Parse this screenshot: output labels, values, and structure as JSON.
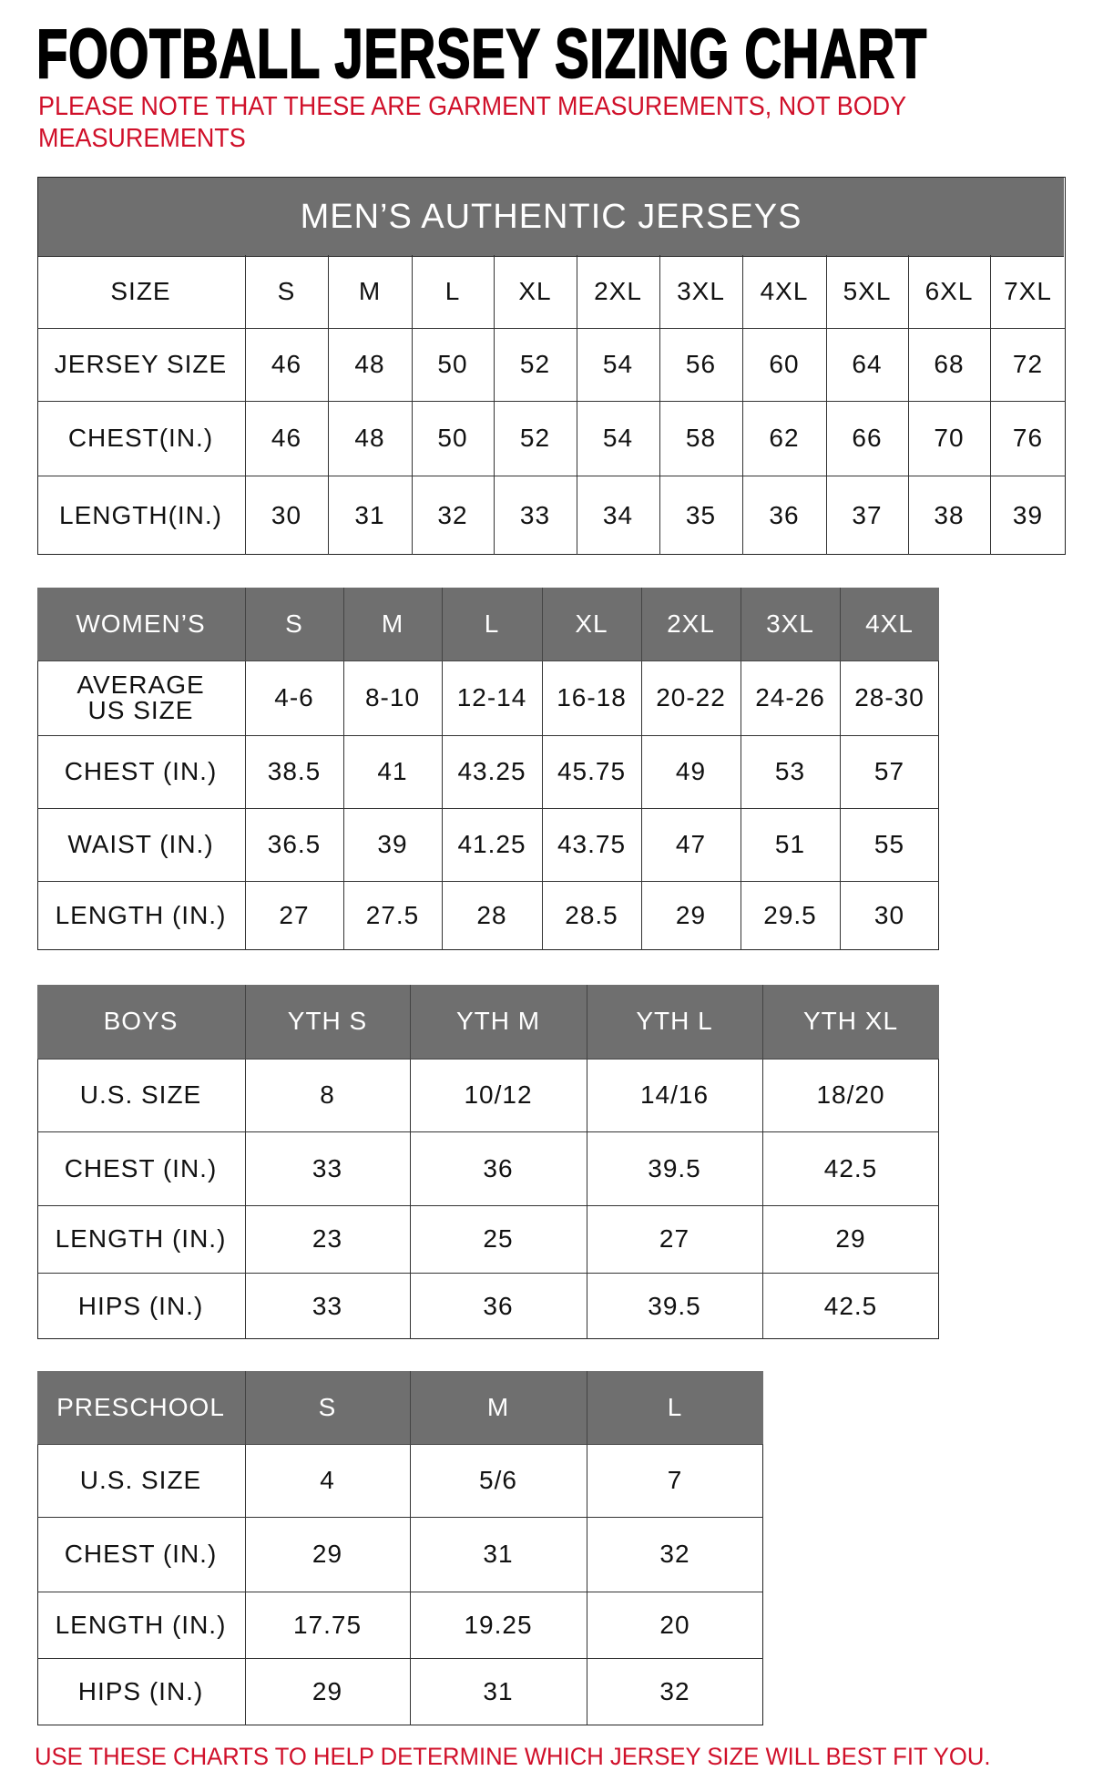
{
  "title": "FOOTBALL JERSEY SIZING CHART",
  "note": "PLEASE NOTE THAT THESE ARE GARMENT MEASUREMENTS, NOT BODY MEASUREMENTS",
  "footer": "USE THESE CHARTS TO HELP DETERMINE WHICH JERSEY SIZE WILL BEST FIT YOU.",
  "colors": {
    "header_gray": "#6f6f6f",
    "accent_red": "#d0102a"
  },
  "tables": [
    {
      "id": "mens",
      "caption": "MEN’S AUTHENTIC JERSEYS",
      "header_gray": false,
      "rows": [
        [
          "SIZE",
          "S",
          "M",
          "L",
          "XL",
          "2XL",
          "3XL",
          "4XL",
          "5XL",
          "6XL",
          "7XL"
        ],
        [
          "JERSEY SIZE",
          "46",
          "48",
          "50",
          "52",
          "54",
          "56",
          "60",
          "64",
          "68",
          "72"
        ],
        [
          "CHEST(IN.)",
          "46",
          "48",
          "50",
          "52",
          "54",
          "58",
          "62",
          "66",
          "70",
          "76"
        ],
        [
          "LENGTH(IN.)",
          "30",
          "31",
          "32",
          "33",
          "34",
          "35",
          "36",
          "37",
          "38",
          "39"
        ]
      ]
    },
    {
      "id": "womens",
      "header_gray": true,
      "rows": [
        [
          "WOMEN’S",
          "S",
          "M",
          "L",
          "XL",
          "2XL",
          "3XL",
          "4XL"
        ],
        [
          "AVERAGE US SIZE",
          "4-6",
          "8-10",
          "12-14",
          "16-18",
          "20-22",
          "24-26",
          "28-30"
        ],
        [
          "CHEST (IN.)",
          "38.5",
          "41",
          "43.25",
          "45.75",
          "49",
          "53",
          "57"
        ],
        [
          "WAIST (IN.)",
          "36.5",
          "39",
          "41.25",
          "43.75",
          "47",
          "51",
          "55"
        ],
        [
          "LENGTH (IN.)",
          "27",
          "27.5",
          "28",
          "28.5",
          "29",
          "29.5",
          "30"
        ]
      ]
    },
    {
      "id": "boys",
      "header_gray": true,
      "rows": [
        [
          "BOYS",
          "YTH S",
          "YTH M",
          "YTH L",
          "YTH XL"
        ],
        [
          "U.S. SIZE",
          "8",
          "10/12",
          "14/16",
          "18/20"
        ],
        [
          "CHEST (IN.)",
          "33",
          "36",
          "39.5",
          "42.5"
        ],
        [
          "LENGTH (IN.)",
          "23",
          "25",
          "27",
          "29"
        ],
        [
          "HIPS (IN.)",
          "33",
          "36",
          "39.5",
          "42.5"
        ]
      ]
    },
    {
      "id": "preschool",
      "header_gray": true,
      "rows": [
        [
          "PRESCHOOL",
          "S",
          "M",
          "L"
        ],
        [
          "U.S. SIZE",
          "4",
          "5/6",
          "7"
        ],
        [
          "CHEST (IN.)",
          "29",
          "31",
          "32"
        ],
        [
          "LENGTH (IN.)",
          "17.75",
          "19.25",
          "20"
        ],
        [
          "HIPS (IN.)",
          "29",
          "31",
          "32"
        ]
      ]
    }
  ]
}
